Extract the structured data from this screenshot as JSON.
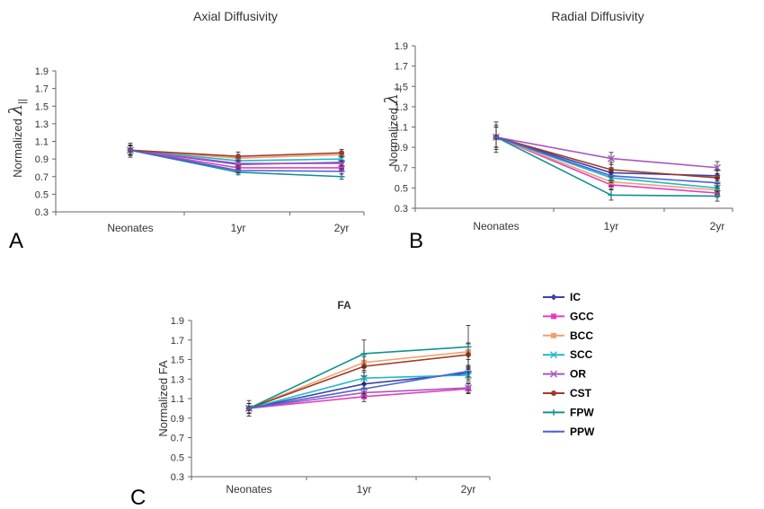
{
  "chart_data": [
    {
      "panel": "A",
      "type": "line",
      "title": "Axial Diffusivity",
      "ylabel": "Normalized",
      "ylabel_symbol": "λ",
      "ylabel_subscript": "||",
      "categories": [
        "Neonates",
        "1yr",
        "2yr"
      ],
      "ylim": [
        0.3,
        1.9
      ],
      "yticks": [
        "0.3",
        "0.5",
        "0.7",
        "0.9",
        "1.1",
        "1.3",
        "1.5",
        "1.7",
        "1.9"
      ],
      "series": [
        {
          "name": "IC",
          "values": [
            1.0,
            0.84,
            0.86
          ],
          "errors": [
            0.05,
            0.03,
            0.03
          ]
        },
        {
          "name": "GCC",
          "values": [
            1.0,
            0.8,
            0.8
          ],
          "errors": [
            0.05,
            0.03,
            0.03
          ]
        },
        {
          "name": "BCC",
          "values": [
            1.0,
            0.91,
            0.95
          ],
          "errors": [
            0.05,
            0.03,
            0.03
          ]
        },
        {
          "name": "SCC",
          "values": [
            1.0,
            0.88,
            0.9
          ],
          "errors": [
            0.05,
            0.03,
            0.03
          ]
        },
        {
          "name": "OR",
          "values": [
            1.0,
            0.85,
            0.85
          ],
          "errors": [
            0.05,
            0.03,
            0.03
          ]
        },
        {
          "name": "CST",
          "values": [
            1.0,
            0.93,
            0.97
          ],
          "errors": [
            0.08,
            0.05,
            0.04
          ]
        },
        {
          "name": "FPW",
          "values": [
            1.0,
            0.75,
            0.7
          ],
          "errors": [
            0.06,
            0.03,
            0.03
          ]
        },
        {
          "name": "PPW",
          "values": [
            1.0,
            0.77,
            0.76
          ],
          "errors": [
            0.05,
            0.03,
            0.03
          ]
        }
      ]
    },
    {
      "panel": "B",
      "type": "line",
      "title": "Radial Diffusivity",
      "ylabel": "Normalized",
      "ylabel_symbol": "λ",
      "ylabel_subscript": "⊥",
      "categories": [
        "Neonates",
        "1yr",
        "2yr"
      ],
      "ylim": [
        0.3,
        1.9
      ],
      "yticks": [
        "0.3",
        "0.5",
        "0.7",
        "0.9",
        "1.1",
        "1.3",
        "1.5",
        "1.7",
        "1.9"
      ],
      "series": [
        {
          "name": "IC",
          "values": [
            1.0,
            0.65,
            0.62
          ],
          "errors": [
            0.1,
            0.05,
            0.05
          ]
        },
        {
          "name": "GCC",
          "values": [
            1.0,
            0.53,
            0.45
          ],
          "errors": [
            0.1,
            0.04,
            0.04
          ]
        },
        {
          "name": "BCC",
          "values": [
            1.0,
            0.56,
            0.48
          ],
          "errors": [
            0.1,
            0.04,
            0.04
          ]
        },
        {
          "name": "SCC",
          "values": [
            1.0,
            0.6,
            0.5
          ],
          "errors": [
            0.1,
            0.05,
            0.04
          ]
        },
        {
          "name": "OR",
          "values": [
            1.0,
            0.79,
            0.7
          ],
          "errors": [
            0.12,
            0.06,
            0.06
          ]
        },
        {
          "name": "CST",
          "values": [
            1.0,
            0.68,
            0.6
          ],
          "errors": [
            0.15,
            0.07,
            0.08
          ]
        },
        {
          "name": "FPW",
          "values": [
            1.0,
            0.43,
            0.42
          ],
          "errors": [
            0.1,
            0.05,
            0.05
          ]
        },
        {
          "name": "PPW",
          "values": [
            1.0,
            0.62,
            0.55
          ],
          "errors": [
            0.1,
            0.05,
            0.05
          ]
        }
      ]
    },
    {
      "panel": "C",
      "type": "line",
      "title": "FA",
      "ylabel": "Normalized FA",
      "categories": [
        "Neonates",
        "1yr",
        "2yr"
      ],
      "ylim": [
        0.3,
        1.9
      ],
      "yticks": [
        "0.3",
        "0.5",
        "0.7",
        "0.9",
        "1.1",
        "1.3",
        "1.5",
        "1.7",
        "1.9"
      ],
      "series": [
        {
          "name": "IC",
          "values": [
            1.0,
            1.25,
            1.36
          ],
          "errors": [
            0.05,
            0.05,
            0.06
          ]
        },
        {
          "name": "GCC",
          "values": [
            1.0,
            1.12,
            1.2
          ],
          "errors": [
            0.05,
            0.05,
            0.05
          ]
        },
        {
          "name": "BCC",
          "values": [
            1.0,
            1.47,
            1.58
          ],
          "errors": [
            0.05,
            0.08,
            0.08
          ]
        },
        {
          "name": "SCC",
          "values": [
            1.0,
            1.31,
            1.34
          ],
          "errors": [
            0.05,
            0.06,
            0.06
          ]
        },
        {
          "name": "OR",
          "values": [
            1.0,
            1.16,
            1.21
          ],
          "errors": [
            0.05,
            0.05,
            0.05
          ]
        },
        {
          "name": "CST",
          "values": [
            1.0,
            1.43,
            1.55
          ],
          "errors": [
            0.08,
            0.1,
            0.12
          ]
        },
        {
          "name": "FPW",
          "values": [
            1.0,
            1.56,
            1.63
          ],
          "errors": [
            0.05,
            0.14,
            0.22
          ]
        },
        {
          "name": "PPW",
          "values": [
            1.0,
            1.2,
            1.38
          ],
          "errors": [
            0.05,
            0.05,
            0.06
          ]
        }
      ]
    }
  ],
  "legend": {
    "placement": "right of panel C",
    "items": [
      {
        "name": "IC",
        "color": "#3a44a8",
        "marker": "diamond"
      },
      {
        "name": "GCC",
        "color": "#e040c0",
        "marker": "square"
      },
      {
        "name": "BCC",
        "color": "#f0a070",
        "marker": "square"
      },
      {
        "name": "SCC",
        "color": "#20b8c8",
        "marker": "x"
      },
      {
        "name": "OR",
        "color": "#a858c0",
        "marker": "x"
      },
      {
        "name": "CST",
        "color": "#a03a28",
        "marker": "circle"
      },
      {
        "name": "FPW",
        "color": "#149090",
        "marker": "plus"
      },
      {
        "name": "PPW",
        "color": "#4860d8",
        "marker": "dash"
      }
    ]
  }
}
